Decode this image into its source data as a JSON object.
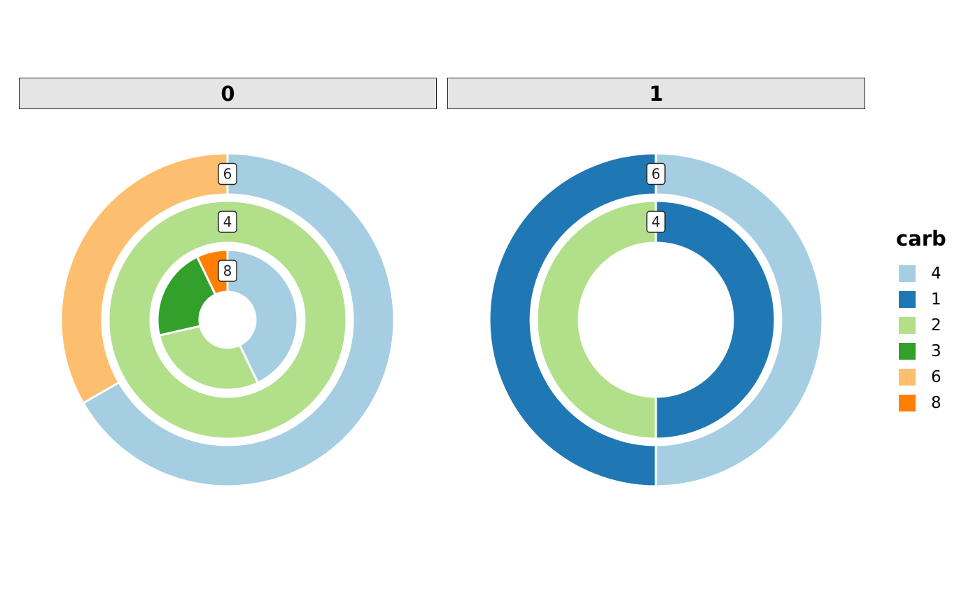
{
  "colors": {
    "4": "#a6cee3",
    "1": "#1f78b4",
    "2": "#b2df8a",
    "3": "#33a02c",
    "6": "#fdbf6f",
    "8": "#ff7f00"
  },
  "legend": {
    "title": "carb",
    "items": [
      "4",
      "1",
      "2",
      "3",
      "6",
      "8"
    ]
  },
  "chart_data": {
    "type": "pie",
    "subtype": "nested-donut",
    "facets": [
      {
        "strip_label": "0",
        "rings": [
          {
            "label": "6",
            "slices": [
              {
                "key": "4",
                "value": 2
              },
              {
                "key": "6",
                "value": 1
              }
            ]
          },
          {
            "label": "4",
            "slices": [
              {
                "key": "2",
                "value": 1
              }
            ]
          },
          {
            "label": "8",
            "slices": [
              {
                "key": "4",
                "value": 6
              },
              {
                "key": "2",
                "value": 4
              },
              {
                "key": "3",
                "value": 3
              },
              {
                "key": "8",
                "value": 1
              }
            ]
          }
        ]
      },
      {
        "strip_label": "1",
        "rings": [
          {
            "label": "6",
            "slices": [
              {
                "key": "4",
                "value": 1
              },
              {
                "key": "1",
                "value": 1
              }
            ]
          },
          {
            "label": "4",
            "slices": [
              {
                "key": "1",
                "value": 1
              },
              {
                "key": "2",
                "value": 1
              }
            ]
          }
        ]
      }
    ]
  }
}
